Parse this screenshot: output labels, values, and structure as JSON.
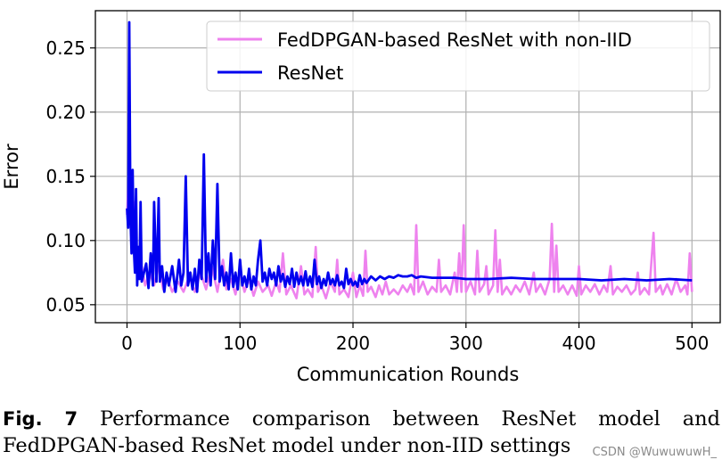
{
  "chart_data": {
    "type": "line",
    "xlabel": "Communication Rounds",
    "ylabel": "Error",
    "xlim": [
      -28,
      525
    ],
    "ylim": [
      0.036,
      0.279
    ],
    "xticks": [
      0,
      100,
      200,
      300,
      400,
      500
    ],
    "yticks": [
      0.05,
      0.1,
      0.15,
      0.2,
      0.25
    ],
    "xtick_labels": [
      "0",
      "100",
      "200",
      "300",
      "400",
      "500"
    ],
    "ytick_labels": [
      "0.05",
      "0.10",
      "0.15",
      "0.20",
      "0.25"
    ],
    "grid": true,
    "legend_position": "upper-right",
    "series": [
      {
        "name": "FedDPGAN-based ResNet with non-IID",
        "color": "#ee82ee",
        "points": [
          [
            0,
            0.12
          ],
          [
            2,
            0.16
          ],
          [
            4,
            0.1
          ],
          [
            6,
            0.13
          ],
          [
            8,
            0.085
          ],
          [
            10,
            0.07
          ],
          [
            13,
            0.08
          ],
          [
            16,
            0.065
          ],
          [
            20,
            0.075
          ],
          [
            24,
            0.065
          ],
          [
            28,
            0.08
          ],
          [
            32,
            0.062
          ],
          [
            36,
            0.07
          ],
          [
            40,
            0.06
          ],
          [
            45,
            0.068
          ],
          [
            50,
            0.06
          ],
          [
            55,
            0.072
          ],
          [
            60,
            0.06
          ],
          [
            65,
            0.075
          ],
          [
            70,
            0.062
          ],
          [
            75,
            0.08
          ],
          [
            80,
            0.06
          ],
          [
            85,
            0.085
          ],
          [
            88,
            0.062
          ],
          [
            92,
            0.07
          ],
          [
            96,
            0.058
          ],
          [
            100,
            0.075
          ],
          [
            104,
            0.06
          ],
          [
            108,
            0.07
          ],
          [
            112,
            0.057
          ],
          [
            116,
            0.068
          ],
          [
            120,
            0.06
          ],
          [
            125,
            0.065
          ],
          [
            128,
            0.057
          ],
          [
            132,
            0.068
          ],
          [
            135,
            0.06
          ],
          [
            138,
            0.09
          ],
          [
            141,
            0.058
          ],
          [
            145,
            0.065
          ],
          [
            150,
            0.055
          ],
          [
            154,
            0.08
          ],
          [
            157,
            0.058
          ],
          [
            160,
            0.062
          ],
          [
            164,
            0.056
          ],
          [
            167,
            0.095
          ],
          [
            169,
            0.06
          ],
          [
            172,
            0.065
          ],
          [
            176,
            0.055
          ],
          [
            180,
            0.068
          ],
          [
            184,
            0.06
          ],
          [
            186,
            0.085
          ],
          [
            188,
            0.058
          ],
          [
            192,
            0.062
          ],
          [
            196,
            0.056
          ],
          [
            200,
            0.075
          ],
          [
            203,
            0.056
          ],
          [
            206,
            0.065
          ],
          [
            209,
            0.057
          ],
          [
            211,
            0.092
          ],
          [
            213,
            0.06
          ],
          [
            216,
            0.064
          ],
          [
            220,
            0.056
          ],
          [
            223,
            0.065
          ],
          [
            226,
            0.058
          ],
          [
            229,
            0.068
          ],
          [
            232,
            0.058
          ],
          [
            236,
            0.062
          ],
          [
            240,
            0.058
          ],
          [
            244,
            0.065
          ],
          [
            248,
            0.06
          ],
          [
            251,
            0.066
          ],
          [
            254,
            0.058
          ],
          [
            256,
            0.112
          ],
          [
            258,
            0.06
          ],
          [
            262,
            0.068
          ],
          [
            266,
            0.058
          ],
          [
            270,
            0.064
          ],
          [
            274,
            0.06
          ],
          [
            276,
            0.085
          ],
          [
            278,
            0.06
          ],
          [
            282,
            0.065
          ],
          [
            286,
            0.058
          ],
          [
            290,
            0.075
          ],
          [
            292,
            0.06
          ],
          [
            294,
            0.09
          ],
          [
            296,
            0.06
          ],
          [
            298,
            0.112
          ],
          [
            300,
            0.06
          ],
          [
            304,
            0.068
          ],
          [
            308,
            0.058
          ],
          [
            310,
            0.092
          ],
          [
            312,
            0.06
          ],
          [
            316,
            0.066
          ],
          [
            318,
            0.08
          ],
          [
            320,
            0.058
          ],
          [
            324,
            0.065
          ],
          [
            326,
            0.108
          ],
          [
            328,
            0.06
          ],
          [
            330,
            0.085
          ],
          [
            332,
            0.058
          ],
          [
            336,
            0.064
          ],
          [
            340,
            0.058
          ],
          [
            344,
            0.065
          ],
          [
            348,
            0.06
          ],
          [
            352,
            0.068
          ],
          [
            356,
            0.058
          ],
          [
            360,
            0.075
          ],
          [
            362,
            0.06
          ],
          [
            366,
            0.066
          ],
          [
            370,
            0.058
          ],
          [
            374,
            0.07
          ],
          [
            376,
            0.113
          ],
          [
            378,
            0.06
          ],
          [
            380,
            0.096
          ],
          [
            382,
            0.06
          ],
          [
            386,
            0.065
          ],
          [
            390,
            0.058
          ],
          [
            394,
            0.065
          ],
          [
            398,
            0.057
          ],
          [
            400,
            0.08
          ],
          [
            402,
            0.058
          ],
          [
            406,
            0.065
          ],
          [
            410,
            0.06
          ],
          [
            414,
            0.066
          ],
          [
            418,
            0.058
          ],
          [
            422,
            0.065
          ],
          [
            425,
            0.06
          ],
          [
            428,
            0.08
          ],
          [
            430,
            0.058
          ],
          [
            434,
            0.064
          ],
          [
            438,
            0.06
          ],
          [
            442,
            0.065
          ],
          [
            446,
            0.058
          ],
          [
            450,
            0.062
          ],
          [
            452,
            0.075
          ],
          [
            454,
            0.058
          ],
          [
            458,
            0.063
          ],
          [
            462,
            0.058
          ],
          [
            466,
            0.106
          ],
          [
            468,
            0.06
          ],
          [
            472,
            0.065
          ],
          [
            474,
            0.058
          ],
          [
            478,
            0.066
          ],
          [
            482,
            0.058
          ],
          [
            486,
            0.07
          ],
          [
            490,
            0.06
          ],
          [
            494,
            0.065
          ],
          [
            496,
            0.058
          ],
          [
            498,
            0.09
          ],
          [
            500,
            0.06
          ]
        ]
      },
      {
        "name": "ResNet",
        "color": "#0000ee",
        "points": [
          [
            0,
            0.125
          ],
          [
            1,
            0.11
          ],
          [
            2,
            0.27
          ],
          [
            3,
            0.12
          ],
          [
            4,
            0.09
          ],
          [
            5,
            0.155
          ],
          [
            6,
            0.095
          ],
          [
            7,
            0.075
          ],
          [
            8,
            0.14
          ],
          [
            9,
            0.065
          ],
          [
            10,
            0.095
          ],
          [
            11,
            0.07
          ],
          [
            12,
            0.13
          ],
          [
            13,
            0.068
          ],
          [
            15,
            0.075
          ],
          [
            17,
            0.082
          ],
          [
            19,
            0.063
          ],
          [
            21,
            0.09
          ],
          [
            23,
            0.065
          ],
          [
            24,
            0.13
          ],
          [
            26,
            0.068
          ],
          [
            27,
            0.095
          ],
          [
            28,
            0.133
          ],
          [
            29,
            0.068
          ],
          [
            31,
            0.08
          ],
          [
            33,
            0.06
          ],
          [
            35,
            0.075
          ],
          [
            37,
            0.065
          ],
          [
            40,
            0.08
          ],
          [
            43,
            0.06
          ],
          [
            46,
            0.085
          ],
          [
            48,
            0.065
          ],
          [
            50,
            0.075
          ],
          [
            52,
            0.15
          ],
          [
            54,
            0.065
          ],
          [
            56,
            0.075
          ],
          [
            58,
            0.062
          ],
          [
            60,
            0.078
          ],
          [
            62,
            0.06
          ],
          [
            64,
            0.085
          ],
          [
            66,
            0.07
          ],
          [
            68,
            0.167
          ],
          [
            70,
            0.068
          ],
          [
            72,
            0.09
          ],
          [
            74,
            0.065
          ],
          [
            76,
            0.1
          ],
          [
            78,
            0.07
          ],
          [
            80,
            0.144
          ],
          [
            82,
            0.068
          ],
          [
            84,
            0.08
          ],
          [
            86,
            0.065
          ],
          [
            88,
            0.075
          ],
          [
            90,
            0.062
          ],
          [
            92,
            0.09
          ],
          [
            94,
            0.064
          ],
          [
            96,
            0.075
          ],
          [
            98,
            0.062
          ],
          [
            100,
            0.085
          ],
          [
            102,
            0.065
          ],
          [
            104,
            0.072
          ],
          [
            106,
            0.064
          ],
          [
            108,
            0.078
          ],
          [
            110,
            0.062
          ],
          [
            112,
            0.072
          ],
          [
            114,
            0.065
          ],
          [
            116,
            0.085
          ],
          [
            118,
            0.1
          ],
          [
            120,
            0.068
          ],
          [
            122,
            0.075
          ],
          [
            124,
            0.065
          ],
          [
            126,
            0.078
          ],
          [
            128,
            0.07
          ],
          [
            130,
            0.075
          ],
          [
            132,
            0.065
          ],
          [
            134,
            0.08
          ],
          [
            136,
            0.068
          ],
          [
            138,
            0.074
          ],
          [
            140,
            0.064
          ],
          [
            142,
            0.072
          ],
          [
            144,
            0.066
          ],
          [
            146,
            0.078
          ],
          [
            148,
            0.064
          ],
          [
            150,
            0.075
          ],
          [
            152,
            0.066
          ],
          [
            154,
            0.072
          ],
          [
            156,
            0.065
          ],
          [
            158,
            0.076
          ],
          [
            160,
            0.065
          ],
          [
            162,
            0.072
          ],
          [
            164,
            0.064
          ],
          [
            166,
            0.085
          ],
          [
            168,
            0.066
          ],
          [
            170,
            0.072
          ],
          [
            172,
            0.063
          ],
          [
            174,
            0.07
          ],
          [
            176,
            0.065
          ],
          [
            178,
            0.075
          ],
          [
            180,
            0.066
          ],
          [
            182,
            0.07
          ],
          [
            184,
            0.065
          ],
          [
            186,
            0.073
          ],
          [
            188,
            0.065
          ],
          [
            190,
            0.068
          ],
          [
            192,
            0.063
          ],
          [
            194,
            0.078
          ],
          [
            196,
            0.066
          ],
          [
            198,
            0.07
          ],
          [
            200,
            0.065
          ],
          [
            202,
            0.068
          ],
          [
            204,
            0.064
          ],
          [
            206,
            0.073
          ],
          [
            208,
            0.066
          ],
          [
            210,
            0.07
          ],
          [
            212,
            0.067
          ],
          [
            216,
            0.072
          ],
          [
            220,
            0.069
          ],
          [
            224,
            0.072
          ],
          [
            228,
            0.07
          ],
          [
            232,
            0.072
          ],
          [
            236,
            0.071
          ],
          [
            240,
            0.073
          ],
          [
            244,
            0.072
          ],
          [
            248,
            0.072
          ],
          [
            252,
            0.073
          ],
          [
            256,
            0.071
          ],
          [
            260,
            0.072
          ],
          [
            270,
            0.071
          ],
          [
            280,
            0.071
          ],
          [
            290,
            0.071
          ],
          [
            300,
            0.07
          ],
          [
            320,
            0.07
          ],
          [
            340,
            0.071
          ],
          [
            360,
            0.07
          ],
          [
            380,
            0.07
          ],
          [
            400,
            0.07
          ],
          [
            420,
            0.069
          ],
          [
            440,
            0.07
          ],
          [
            460,
            0.069
          ],
          [
            480,
            0.07
          ],
          [
            500,
            0.069
          ]
        ]
      }
    ]
  },
  "caption": {
    "label": "Fig. 7",
    "text": "Performance comparison between ResNet model and FedDPGAN-based ResNet model under non-IID settings"
  },
  "watermark": "CSDN @WuwuwuwH_"
}
